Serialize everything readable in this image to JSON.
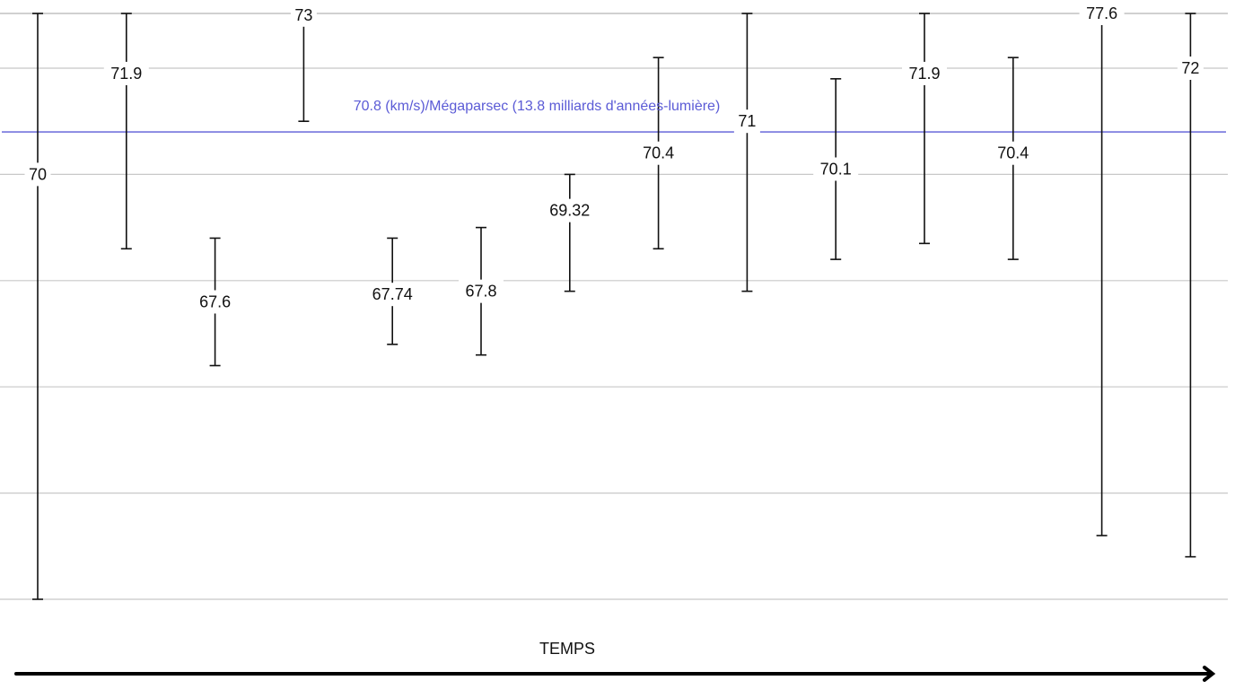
{
  "chart_data": {
    "type": "errorbar",
    "xlabel": "TEMPS",
    "ylim": [
      62,
      80
    ],
    "grid": true,
    "reference": {
      "value": 70.8,
      "label": "70.8 (km/s)/Mégaparsec (13.8 milliards d'années-lumière)",
      "color": "#5b5bd6"
    },
    "points": [
      {
        "label": "70",
        "value": 70,
        "low": 62.0,
        "high": 78.0
      },
      {
        "label": "71.9",
        "value": 71.9,
        "low": 68.6,
        "high": 75.2
      },
      {
        "label": "67.6",
        "value": 67.6,
        "low": 66.4,
        "high": 68.8
      },
      {
        "label": "73",
        "value": 73,
        "low": 71.0,
        "high": 75.0
      },
      {
        "label": "67.74",
        "value": 67.74,
        "low": 66.8,
        "high": 68.8
      },
      {
        "label": "67.8",
        "value": 67.8,
        "low": 66.6,
        "high": 69.0
      },
      {
        "label": "69.32",
        "value": 69.32,
        "low": 67.8,
        "high": 70.0
      },
      {
        "label": "70.4",
        "value": 70.4,
        "low": 68.6,
        "high": 72.2
      },
      {
        "label": "71",
        "value": 71,
        "low": 67.8,
        "high": 74.0
      },
      {
        "label": "70.1",
        "value": 70.1,
        "low": 68.4,
        "high": 71.8
      },
      {
        "label": "71.9",
        "value": 71.9,
        "low": 68.7,
        "high": 74.5
      },
      {
        "label": "70.4",
        "value": 70.4,
        "low": 68.4,
        "high": 72.2
      },
      {
        "label": "77.6",
        "value": 77.6,
        "low": 63.2,
        "high": 85.1
      },
      {
        "label": "72",
        "value": 72,
        "low": 62.8,
        "high": 76.0
      }
    ]
  }
}
